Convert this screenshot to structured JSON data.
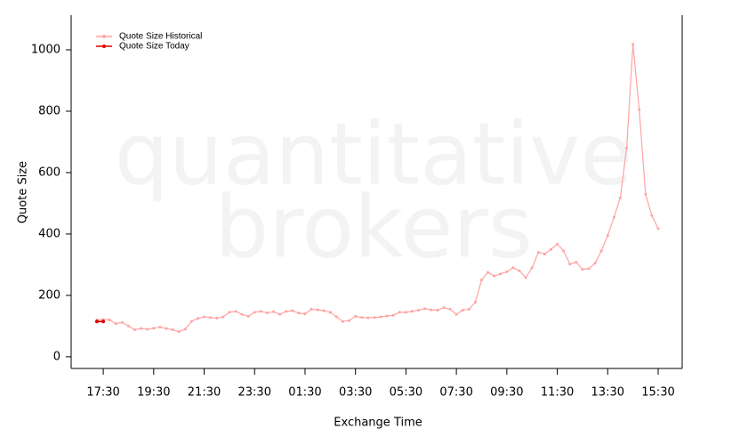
{
  "chart_data": {
    "type": "line",
    "watermark": [
      "quantitative",
      "brokers"
    ],
    "xlabel": "Exchange Time",
    "ylabel": "Quote Size",
    "categories": [
      null,
      "17:30",
      null,
      null,
      null,
      null,
      null,
      null,
      null,
      "19:30",
      null,
      null,
      null,
      null,
      null,
      null,
      null,
      "21:30",
      null,
      null,
      null,
      null,
      null,
      null,
      null,
      "23:30",
      null,
      null,
      null,
      null,
      null,
      null,
      null,
      "01:30",
      null,
      null,
      null,
      null,
      null,
      null,
      null,
      "03:30",
      null,
      null,
      null,
      null,
      null,
      null,
      null,
      "05:30",
      null,
      null,
      null,
      null,
      null,
      null,
      null,
      "07:30",
      null,
      null,
      null,
      null,
      null,
      null,
      null,
      "09:30",
      null,
      null,
      null,
      null,
      null,
      null,
      null,
      "11:30",
      null,
      null,
      null,
      null,
      null,
      null,
      null,
      "13:30",
      null,
      null,
      null,
      null,
      null,
      null,
      null,
      "15:30"
    ],
    "series": [
      {
        "name": "Quote Size Historical",
        "color": "#ffa3a3",
        "values": [
          120,
          122,
          120,
          108,
          112,
          100,
          88,
          92,
          90,
          93,
          97,
          92,
          88,
          82,
          90,
          115,
          125,
          130,
          128,
          126,
          130,
          145,
          148,
          138,
          132,
          145,
          148,
          143,
          147,
          138,
          148,
          150,
          142,
          140,
          155,
          153,
          150,
          145,
          130,
          115,
          118,
          132,
          128,
          127,
          128,
          130,
          133,
          135,
          145,
          145,
          148,
          152,
          157,
          153,
          152,
          160,
          155,
          138,
          152,
          155,
          178,
          250,
          275,
          263,
          270,
          277,
          290,
          280,
          258,
          290,
          340,
          335,
          350,
          367,
          345,
          302,
          308,
          285,
          287,
          305,
          345,
          395,
          455,
          518,
          680,
          1018,
          805,
          530,
          460,
          418
        ]
      },
      {
        "name": "Quote Size Today",
        "color": "#e00000",
        "values": [
          115,
          115,
          null,
          null,
          null,
          null,
          null,
          null,
          null,
          null,
          null,
          null,
          null,
          null,
          null,
          null,
          null,
          null,
          null,
          null,
          null,
          null,
          null,
          null,
          null,
          null,
          null,
          null,
          null,
          null,
          null,
          null,
          null,
          null,
          null,
          null,
          null,
          null,
          null,
          null,
          null,
          null,
          null,
          null,
          null,
          null,
          null,
          null,
          null,
          null,
          null,
          null,
          null,
          null,
          null,
          null,
          null,
          null,
          null,
          null,
          null,
          null,
          null,
          null,
          null,
          null,
          null,
          null,
          null,
          null,
          null,
          null,
          null,
          null,
          null,
          null,
          null,
          null,
          null,
          null,
          null,
          null,
          null,
          null,
          null,
          null,
          null,
          null,
          null,
          null
        ]
      }
    ],
    "ylim": [
      -38,
      1113
    ],
    "yticks": [
      0,
      200,
      400,
      600,
      800,
      1000
    ],
    "grid": false,
    "legend": "top-left"
  }
}
